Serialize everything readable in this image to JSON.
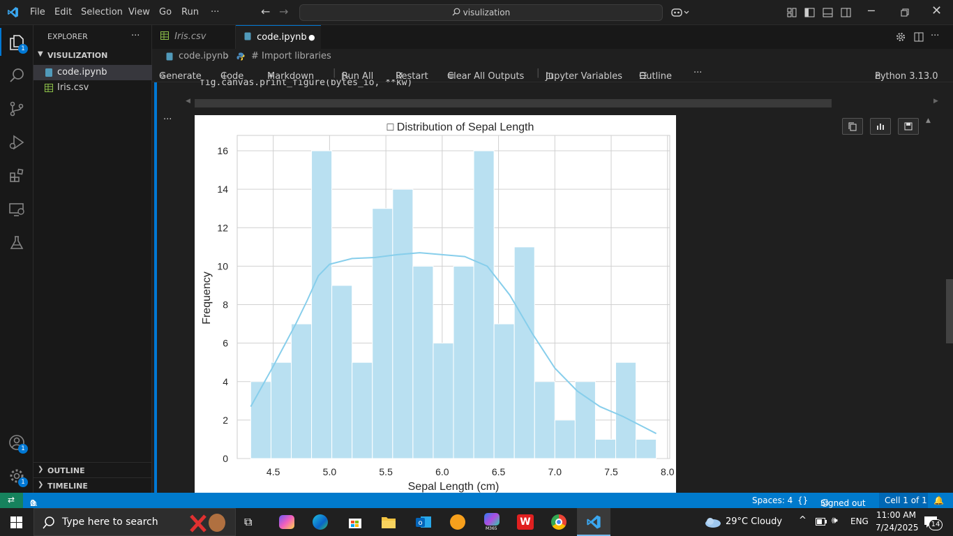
{
  "titlebar": {
    "menus": [
      "File",
      "Edit",
      "Selection",
      "View",
      "Go",
      "Run",
      "···"
    ],
    "search_text": "visulization"
  },
  "activity": {
    "explorer_badge": "1",
    "account_badge": "1",
    "settings_badge": "1"
  },
  "sidebar": {
    "header": "EXPLORER",
    "more": "···",
    "folder": "VISULIZATION",
    "files": [
      {
        "name": "code.ipynb",
        "icon": "notebook-icon",
        "selected": true
      },
      {
        "name": "Iris.csv",
        "icon": "csv-icon",
        "selected": false
      }
    ],
    "outline": "OUTLINE",
    "timeline": "TIMELINE"
  },
  "tabs": [
    {
      "label": "Iris.csv",
      "active": false
    },
    {
      "label": "code.ipynb",
      "active": true
    }
  ],
  "breadcrumb": {
    "file": "code.ipynb",
    "section": "# Import libraries"
  },
  "toolbar": {
    "generate": "Generate",
    "code": "Code",
    "markdown": "Markdown",
    "run_all": "Run All",
    "restart": "Restart",
    "clear": "Clear All Outputs",
    "variables": "Jupyter Variables",
    "outline": "Outline",
    "more": "···",
    "kernel": "Python 3.13.0"
  },
  "cell": {
    "code_line": "fig.canvas.print_figure(bytes_io, **kw)",
    "output_more": "···"
  },
  "chart_data": {
    "type": "bar",
    "title": "□ Distribution of Sepal Length",
    "xlabel": "Sepal Length (cm)",
    "ylabel": "Frequency",
    "xlim": [
      4.18,
      8.02
    ],
    "ylim": [
      0,
      16.8
    ],
    "xticks": [
      "4.5",
      "5.0",
      "5.5",
      "6.0",
      "6.5",
      "7.0",
      "7.5",
      "8.0"
    ],
    "yticks": [
      "0",
      "2",
      "4",
      "6",
      "8",
      "10",
      "12",
      "14",
      "16"
    ],
    "grid": true,
    "bar_color": "#b9e0f1",
    "kde_color": "#87ceeb",
    "bins": [
      {
        "x0": 4.3,
        "x1": 4.48,
        "count": 4
      },
      {
        "x0": 4.48,
        "x1": 4.66,
        "count": 5
      },
      {
        "x0": 4.66,
        "x1": 4.84,
        "count": 7
      },
      {
        "x0": 4.84,
        "x1": 5.02,
        "count": 16
      },
      {
        "x0": 5.02,
        "x1": 5.2,
        "count": 9
      },
      {
        "x0": 5.2,
        "x1": 5.38,
        "count": 5
      },
      {
        "x0": 5.38,
        "x1": 5.56,
        "count": 13
      },
      {
        "x0": 5.56,
        "x1": 5.74,
        "count": 14
      },
      {
        "x0": 5.74,
        "x1": 5.92,
        "count": 10
      },
      {
        "x0": 5.92,
        "x1": 6.1,
        "count": 6
      },
      {
        "x0": 6.1,
        "x1": 6.28,
        "count": 10
      },
      {
        "x0": 6.28,
        "x1": 6.46,
        "count": 16
      },
      {
        "x0": 6.46,
        "x1": 6.64,
        "count": 7
      },
      {
        "x0": 6.64,
        "x1": 6.82,
        "count": 11
      },
      {
        "x0": 6.82,
        "x1": 7.0,
        "count": 4
      },
      {
        "x0": 7.0,
        "x1": 7.18,
        "count": 2
      },
      {
        "x0": 7.18,
        "x1": 7.36,
        "count": 4
      },
      {
        "x0": 7.36,
        "x1": 7.54,
        "count": 1
      },
      {
        "x0": 7.54,
        "x1": 7.72,
        "count": 5
      },
      {
        "x0": 7.72,
        "x1": 7.9,
        "count": 1
      }
    ],
    "kde": {
      "x": [
        4.3,
        4.5,
        4.7,
        4.8,
        4.9,
        5.0,
        5.2,
        5.4,
        5.6,
        5.8,
        6.0,
        6.2,
        6.4,
        6.6,
        6.8,
        7.0,
        7.2,
        7.4,
        7.6,
        7.8,
        7.9
      ],
      "y": [
        2.7,
        4.8,
        7.0,
        8.2,
        9.5,
        10.1,
        10.4,
        10.45,
        10.6,
        10.7,
        10.6,
        10.5,
        10.0,
        8.5,
        6.5,
        4.7,
        3.5,
        2.7,
        2.2,
        1.6,
        1.3
      ]
    }
  },
  "status": {
    "problems": "0",
    "warnings": "0",
    "spaces": "Spaces: 4",
    "braces": "{}",
    "signed_out": "Signed out",
    "cell_pos": "Cell 1 of 1"
  },
  "taskbar": {
    "search_placeholder": "Type here to search",
    "weather": "29°C  Cloudy",
    "lang": "ENG",
    "time": "11:00 AM",
    "date": "7/24/2025",
    "notif_count": "14",
    "m365_label": "M365"
  }
}
